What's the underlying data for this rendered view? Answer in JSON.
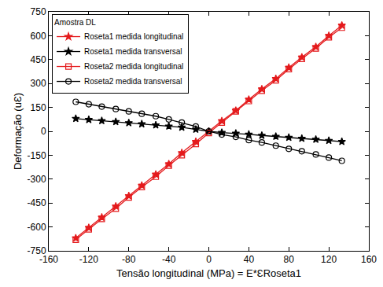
{
  "chart_data": {
    "type": "line",
    "x_label": "Tensão longitudinal (MPa) = E*ƐRoseta1",
    "y_label": "Deformação (uƐ)",
    "legend_title": "Amostra DL",
    "x": [
      -133,
      -120,
      -107,
      -93,
      -80,
      -67,
      -53,
      -40,
      -27,
      -13,
      0,
      13,
      27,
      40,
      53,
      67,
      80,
      93,
      107,
      120,
      133
    ],
    "series": [
      {
        "name": "Roseta1 medida longitudinal",
        "color": "#e41a1c",
        "marker": "star",
        "line_style": "solid",
        "values": [
          -670,
          -605,
          -540,
          -470,
          -405,
          -340,
          -270,
          -205,
          -135,
          -65,
          0,
          65,
          130,
          200,
          265,
          330,
          400,
          465,
          530,
          600,
          665
        ]
      },
      {
        "name": "Roseta1 medida transversal",
        "color": "#000000",
        "marker": "star",
        "line_style": "solid",
        "values": [
          80,
          73,
          66,
          60,
          53,
          46,
          39,
          32,
          25,
          12,
          0,
          -8,
          -13,
          -19,
          -26,
          -32,
          -39,
          -45,
          -51,
          -58,
          -65
        ]
      },
      {
        "name": "Roseta2 medida longitudinal",
        "color": "#e41a1c",
        "marker": "square-open",
        "line_style": "solid",
        "values": [
          -680,
          -615,
          -550,
          -485,
          -415,
          -350,
          -285,
          -215,
          -150,
          -80,
          -10,
          55,
          125,
          190,
          255,
          320,
          390,
          455,
          520,
          590,
          650
        ]
      },
      {
        "name": "Roseta2 medida transversal",
        "color": "#000000",
        "marker": "circle-open",
        "line_style": "solid",
        "values": [
          185,
          170,
          155,
          140,
          125,
          110,
          95,
          75,
          55,
          30,
          0,
          -20,
          -35,
          -55,
          -70,
          -90,
          -110,
          -125,
          -145,
          -165,
          -185
        ]
      }
    ],
    "xlim": [
      -160,
      160
    ],
    "xticks": [
      -160,
      -120,
      -80,
      -40,
      0,
      40,
      80,
      120,
      160
    ],
    "ylim": [
      -750,
      750
    ],
    "yticks": [
      -750,
      -600,
      -450,
      -300,
      -150,
      0,
      150,
      300,
      450,
      600,
      750
    ],
    "grid": false,
    "legend": "top-left"
  }
}
